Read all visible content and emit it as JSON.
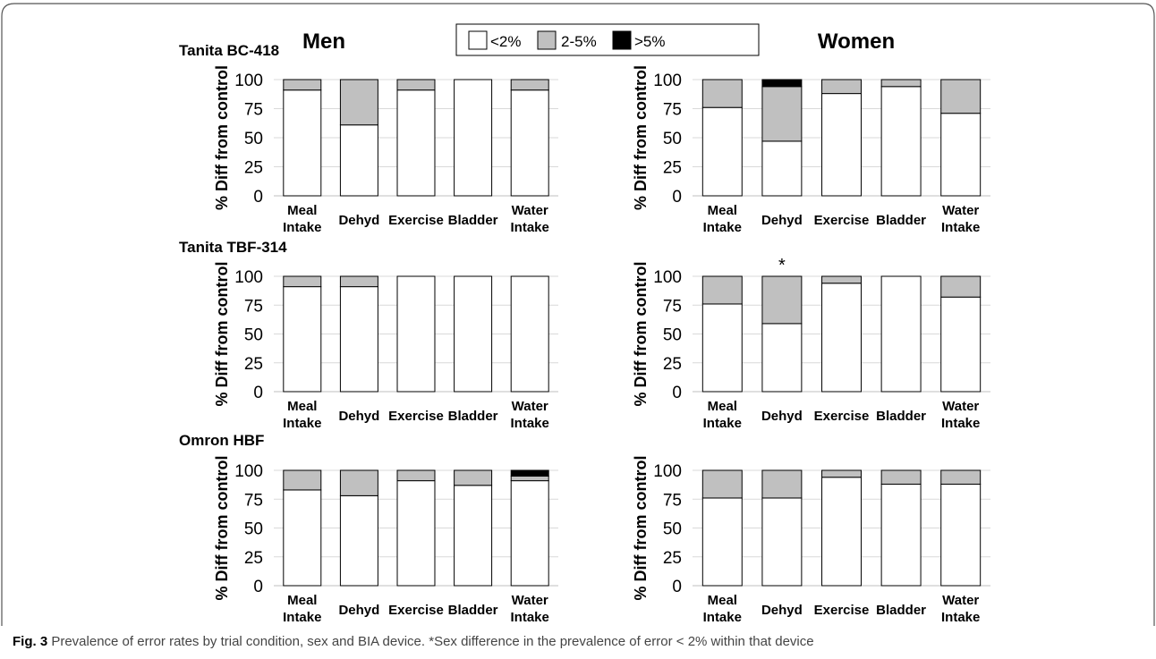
{
  "figure": {
    "sex_labels": [
      "Men",
      "Women"
    ],
    "legend": [
      {
        "label": "<2%",
        "color": "#ffffff"
      },
      {
        "label": "2-5%",
        "color": "#c0c0c0"
      },
      {
        "label": ">5%",
        "color": "#000000"
      }
    ],
    "caption_label": "Fig. 3",
    "caption_text": "Prevalence of error rates by trial condition, sex and BIA device. *Sex difference in the prevalence of error < 2% within that device"
  },
  "chart_data": [
    {
      "type": "bar",
      "stacked": true,
      "device": "Tanita BC-418",
      "panel": "Men",
      "categories": [
        "Meal Intake",
        "Dehyd",
        "Exercise",
        "Bladder",
        "Water Intake"
      ],
      "series": [
        {
          "name": "<2%",
          "values": [
            91,
            61,
            91,
            100,
            91
          ]
        },
        {
          "name": "2-5%",
          "values": [
            9,
            39,
            9,
            0,
            9
          ]
        },
        {
          "name": ">5%",
          "values": [
            0,
            0,
            0,
            0,
            0
          ]
        }
      ],
      "ylabel": "% Diff from control",
      "ylim": [
        0,
        100
      ],
      "yticks": [
        0,
        25,
        50,
        75,
        100
      ],
      "star": ""
    },
    {
      "type": "bar",
      "stacked": true,
      "device": "",
      "panel": "Women",
      "categories": [
        "Meal Intake",
        "Dehyd",
        "Exercise",
        "Bladder",
        "Water Intake"
      ],
      "series": [
        {
          "name": "<2%",
          "values": [
            76,
            47,
            88,
            94,
            71
          ]
        },
        {
          "name": "2-5%",
          "values": [
            24,
            47,
            12,
            6,
            29
          ]
        },
        {
          "name": ">5%",
          "values": [
            0,
            6,
            0,
            0,
            0
          ]
        }
      ],
      "ylabel": "% Diff from control",
      "ylim": [
        0,
        100
      ],
      "yticks": [
        0,
        25,
        50,
        75,
        100
      ],
      "star": ""
    },
    {
      "type": "bar",
      "stacked": true,
      "device": "Tanita TBF-314",
      "panel": "Men",
      "categories": [
        "Meal Intake",
        "Dehyd",
        "Exercise",
        "Bladder",
        "Water Intake"
      ],
      "series": [
        {
          "name": "<2%",
          "values": [
            91,
            91,
            100,
            100,
            100
          ]
        },
        {
          "name": "2-5%",
          "values": [
            9,
            9,
            0,
            0,
            0
          ]
        },
        {
          "name": ">5%",
          "values": [
            0,
            0,
            0,
            0,
            0
          ]
        }
      ],
      "ylabel": "% Diff from control",
      "ylim": [
        0,
        100
      ],
      "yticks": [
        0,
        25,
        50,
        75,
        100
      ],
      "star": ""
    },
    {
      "type": "bar",
      "stacked": true,
      "device": "",
      "panel": "Women",
      "categories": [
        "Meal Intake",
        "Dehyd",
        "Exercise",
        "Bladder",
        "Water Intake"
      ],
      "series": [
        {
          "name": "<2%",
          "values": [
            76,
            59,
            94,
            100,
            82
          ]
        },
        {
          "name": "2-5%",
          "values": [
            24,
            41,
            6,
            0,
            18
          ]
        },
        {
          "name": ">5%",
          "values": [
            0,
            0,
            0,
            0,
            0
          ]
        }
      ],
      "ylabel": "% Diff from control",
      "ylim": [
        0,
        100
      ],
      "yticks": [
        0,
        25,
        50,
        75,
        100
      ],
      "star": "*",
      "star_category": "Dehyd"
    },
    {
      "type": "bar",
      "stacked": true,
      "device": "Omron HBF",
      "panel": "Men",
      "categories": [
        "Meal Intake",
        "Dehyd",
        "Exercise",
        "Bladder",
        "Water Intake"
      ],
      "series": [
        {
          "name": "<2%",
          "values": [
            83,
            78,
            91,
            87,
            91
          ]
        },
        {
          "name": "2-5%",
          "values": [
            17,
            22,
            9,
            13,
            4
          ]
        },
        {
          "name": ">5%",
          "values": [
            0,
            0,
            0,
            0,
            5
          ]
        }
      ],
      "ylabel": "% Diff from control",
      "ylim": [
        0,
        100
      ],
      "yticks": [
        0,
        25,
        50,
        75,
        100
      ],
      "star": ""
    },
    {
      "type": "bar",
      "stacked": true,
      "device": "",
      "panel": "Women",
      "categories": [
        "Meal Intake",
        "Dehyd",
        "Exercise",
        "Bladder",
        "Water Intake"
      ],
      "series": [
        {
          "name": "<2%",
          "values": [
            76,
            76,
            94,
            88,
            88
          ]
        },
        {
          "name": "2-5%",
          "values": [
            24,
            24,
            6,
            12,
            12
          ]
        },
        {
          "name": ">5%",
          "values": [
            0,
            0,
            0,
            0,
            0
          ]
        }
      ],
      "ylabel": "% Diff from control",
      "ylim": [
        0,
        100
      ],
      "yticks": [
        0,
        25,
        50,
        75,
        100
      ],
      "star": ""
    }
  ]
}
